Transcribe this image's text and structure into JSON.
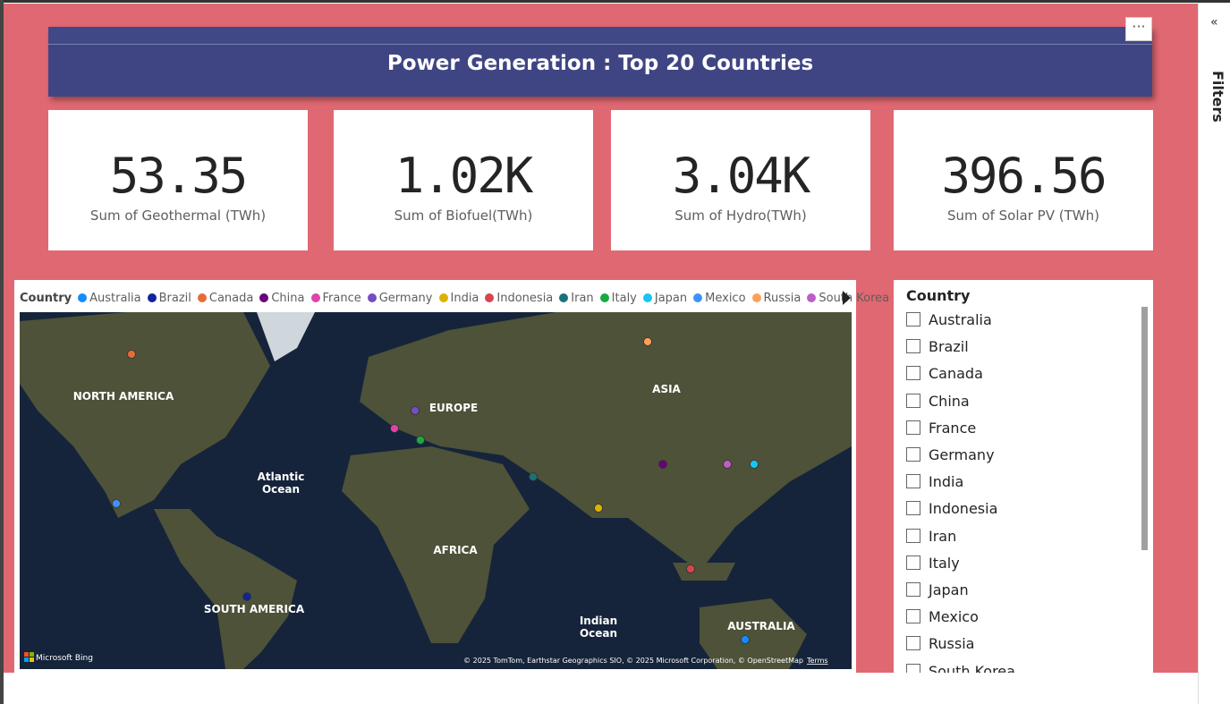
{
  "title": "Power Generation : Top 20 Countries",
  "cards": [
    {
      "value": "53.35",
      "label": "Sum of Geothermal (TWh)"
    },
    {
      "value": "1.02K",
      "label": "Sum of Biofuel(TWh)"
    },
    {
      "value": "3.04K",
      "label": "Sum of Hydro(TWh)"
    },
    {
      "value": "396.56",
      "label": "Sum of Solar PV (TWh)"
    }
  ],
  "map": {
    "legend_title": "Country",
    "legend": [
      {
        "name": "Australia",
        "color": "#118dff"
      },
      {
        "name": "Brazil",
        "color": "#12239e"
      },
      {
        "name": "Canada",
        "color": "#e66c37"
      },
      {
        "name": "China",
        "color": "#6b007b"
      },
      {
        "name": "France",
        "color": "#e044a7"
      },
      {
        "name": "Germany",
        "color": "#744ec2"
      },
      {
        "name": "India",
        "color": "#d9b300"
      },
      {
        "name": "Indonesia",
        "color": "#d64550"
      },
      {
        "name": "Iran",
        "color": "#197278"
      },
      {
        "name": "Italy",
        "color": "#1aab40"
      },
      {
        "name": "Japan",
        "color": "#15c6f4"
      },
      {
        "name": "Mexico",
        "color": "#4092ff"
      },
      {
        "name": "Russia",
        "color": "#ffa058"
      },
      {
        "name": "South Korea",
        "color": "#be5dc9"
      }
    ],
    "labels": [
      "NORTH AMERICA",
      "EUROPE",
      "ASIA",
      "Atlantic",
      "Ocean",
      "AFRICA",
      "SOUTH AMERICA",
      "Indian",
      "Ocean",
      "AUSTRALIA"
    ],
    "provider": "Microsoft Bing",
    "copyright": "© 2025 TomTom, Earthstar Geographics SIO, © 2025 Microsoft Corporation, © OpenStreetMap",
    "terms": "Terms"
  },
  "slicer": {
    "title": "Country",
    "items": [
      "Australia",
      "Brazil",
      "Canada",
      "China",
      "France",
      "Germany",
      "India",
      "Indonesia",
      "Iran",
      "Italy",
      "Japan",
      "Mexico",
      "Russia",
      "South Korea"
    ]
  },
  "filters_pane": "Filters"
}
